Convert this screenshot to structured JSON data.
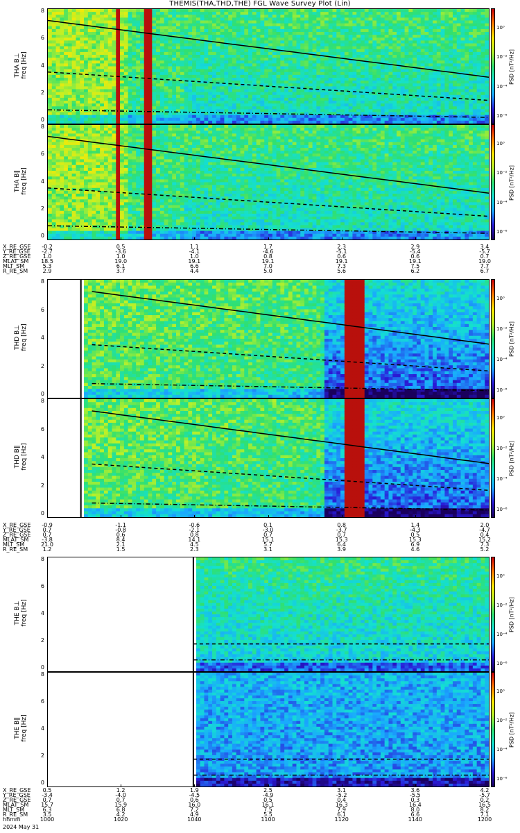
{
  "title": "THEMIS(THA,THD,THE) FGL Wave Survey Plot (Lin)",
  "date_label": "2024 May 31",
  "colorbar": {
    "label": "PSD [nT²/Hz]",
    "ticks": [
      "10⁰",
      "10⁻²",
      "10⁻⁴",
      "10⁻⁶"
    ]
  },
  "chart_data": [
    {
      "type": "heatmap",
      "probe": "THA",
      "panels": [
        {
          "ylabel": "THA B⊥",
          "yunit": "freq [Hz]",
          "ylim": [
            0,
            8
          ],
          "yticks": [
            "8",
            "6",
            "4",
            "2",
            "0"
          ]
        },
        {
          "ylabel": "THA B∥",
          "yunit": "freq [Hz]",
          "ylim": [
            0,
            8
          ],
          "yticks": [
            "8",
            "6",
            "4",
            "2",
            "0"
          ]
        }
      ],
      "ephemeris": {
        "labels": [
          "X_RE_GSE",
          "Y_RE_GSE",
          "Z_RE_GSE",
          "MLAT_SM",
          "MLT_SM",
          "R_RE_SM"
        ],
        "columns": [
          [
            "-0.2",
            "-2.7",
            "1.0",
            "18.5",
            "5.3",
            "2.9"
          ],
          [
            "0.5",
            "-3.6",
            "1.0",
            "19.0",
            "6.1",
            "3.7"
          ],
          [
            "1.1",
            "-4.1",
            "1.0",
            "19.1",
            "6.6",
            "4.4"
          ],
          [
            "1.7",
            "-4.6",
            "0.8",
            "19.1",
            "7.0",
            "5.0"
          ],
          [
            "2.3",
            "-5.1",
            "0.6",
            "19.1",
            "7.3",
            "5.6"
          ],
          [
            "2.9",
            "-5.4",
            "0.6",
            "19.1",
            "7.5",
            "6.2"
          ],
          [
            "3.4",
            "-5.7",
            "0.7",
            "19.0",
            "7.7",
            "6.7"
          ]
        ]
      }
    },
    {
      "type": "heatmap",
      "probe": "THD",
      "panels": [
        {
          "ylabel": "THD B⊥",
          "yunit": "freq [Hz]",
          "ylim": [
            0,
            8
          ],
          "yticks": [
            "8",
            "6",
            "4",
            "2",
            "0"
          ]
        },
        {
          "ylabel": "THD B∥",
          "yunit": "freq [Hz]",
          "ylim": [
            0,
            8
          ],
          "yticks": [
            "8",
            "6",
            "4",
            "2",
            "0"
          ]
        }
      ],
      "ephemeris": {
        "labels": [
          "X_RE_GSE",
          "Y_RE_GSE",
          "Z_RE_GSE",
          "MLAT_SM",
          "MLT_SM",
          "R_RE_SM"
        ],
        "columns": [
          [
            "-0.9",
            "0.7",
            "0.7",
            "-3.8",
            "21.0",
            "1.2"
          ],
          [
            "-1.1",
            "-0.8",
            "0.6",
            "8.4",
            "2.1",
            "1.5"
          ],
          [
            "-0.6",
            "-2.1",
            "0.8",
            "14.1",
            "4.5",
            "2.3"
          ],
          [
            "0.1",
            "-3.0",
            "0.7",
            "15.1",
            "5.7",
            "3.1"
          ],
          [
            "0.8",
            "-3.7",
            "0.7",
            "15.3",
            "6.4",
            "3.9"
          ],
          [
            "1.4",
            "-4.3",
            "0.5",
            "15.3",
            "6.9",
            "4.6"
          ],
          [
            "2.0",
            "-4.7",
            "0.4",
            "15.2",
            "7.3",
            "5.2"
          ]
        ]
      }
    },
    {
      "type": "heatmap",
      "probe": "THE",
      "panels": [
        {
          "ylabel": "THE B⊥",
          "yunit": "freq [Hz]",
          "ylim": [
            0,
            8
          ],
          "yticks": [
            "8",
            "6",
            "4",
            "2",
            "0"
          ]
        },
        {
          "ylabel": "THE B∥",
          "yunit": "freq [Hz]",
          "ylim": [
            0,
            8
          ],
          "yticks": [
            "8",
            "6",
            "4",
            "2",
            "0"
          ]
        }
      ],
      "ephemeris": {
        "labels": [
          "X_RE_GSE",
          "Y_RE_GSE",
          "Z_RE_GSE",
          "MLAT_SM",
          "MLT_SM",
          "R_RE_SM",
          "hhmm"
        ],
        "columns": [
          [
            "0.5",
            "-3.4",
            "0.7",
            "15.7",
            "6.3",
            "3.5",
            "1000"
          ],
          [
            "1.2",
            "-4.0",
            "0.7",
            "15.9",
            "6.8",
            "4.2",
            "1020"
          ],
          [
            "1.9",
            "-4.5",
            "0.6",
            "16.0",
            "7.2",
            "4.9",
            "1040"
          ],
          [
            "2.5",
            "-4.9",
            "0.5",
            "16.1",
            "7.5",
            "5.5",
            "1100"
          ],
          [
            "3.1",
            "-5.2",
            "0.4",
            "16.3",
            "7.9",
            "6.1",
            "1120"
          ],
          [
            "3.6",
            "-5.5",
            "0.3",
            "16.4",
            "8.0",
            "6.6",
            "1140"
          ],
          [
            "4.2",
            "-5.7",
            "0.2",
            "16.5",
            "8.2",
            "7.1",
            "1200"
          ]
        ]
      }
    }
  ]
}
